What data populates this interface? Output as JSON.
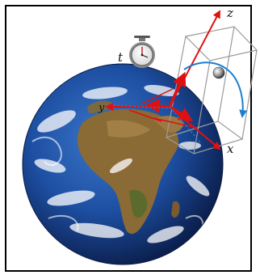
{
  "labels": {
    "time": "t",
    "axis_x": "x",
    "axis_y": "y",
    "axis_z": "z"
  },
  "icons": {
    "clock": "stopwatch-icon",
    "globe": "earth-globe-icon",
    "particle": "sphere-particle-icon"
  },
  "colors": {
    "axis": "#e01010",
    "trajectory": "#1a7fd0",
    "box": "#9a9a9a",
    "frame": "#000000"
  }
}
